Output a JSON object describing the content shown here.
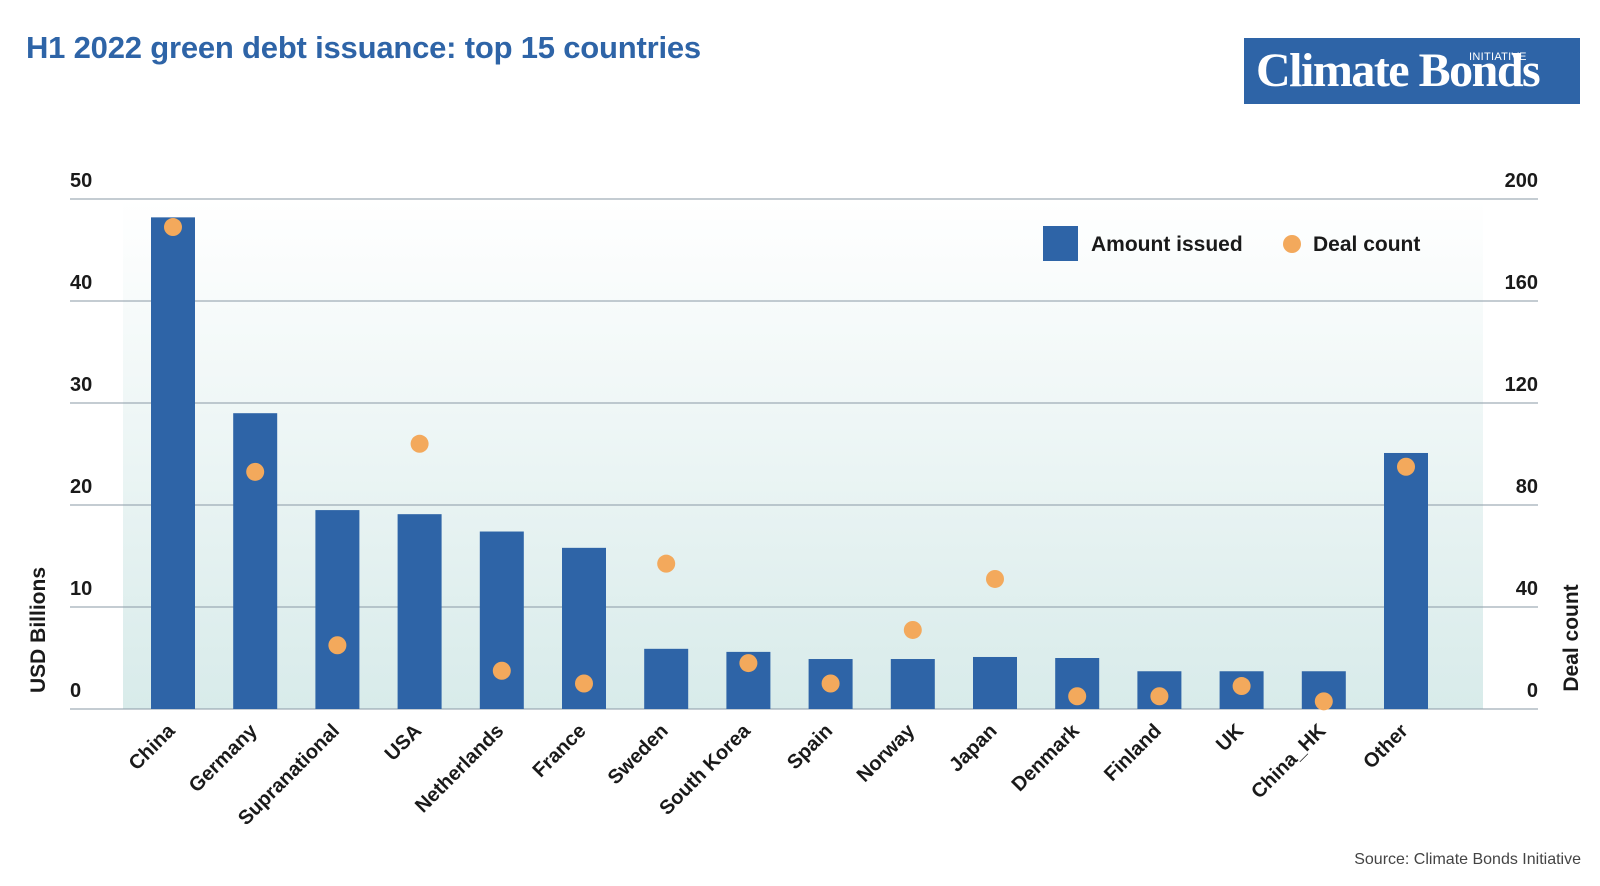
{
  "title": "H1 2022 green debt issuance: top 15 countries",
  "logo": {
    "main": "Climate Bonds",
    "superscript": "INITIATIVE"
  },
  "source": "Source: Climate Bonds Initiative",
  "colors": {
    "bar": "#2e64a7",
    "dot": "#f3a95c",
    "title": "#2e64a7",
    "gridline": "#8a9aa6"
  },
  "chart_data": {
    "type": "bar",
    "categories": [
      "China",
      "Germany",
      "Supranational",
      "USA",
      "Netherlands",
      "France",
      "Sweden",
      "South Korea",
      "Spain",
      "Norway",
      "Japan",
      "Denmark",
      "Finland",
      "UK",
      "China_HK",
      "Other"
    ],
    "series": [
      {
        "name": "Amount issued",
        "axis": "left",
        "type": "bar",
        "values": [
          48.2,
          29.0,
          19.5,
          19.1,
          17.4,
          15.8,
          5.9,
          5.6,
          4.9,
          4.9,
          5.1,
          5.0,
          3.7,
          3.7,
          3.7,
          25.1
        ]
      },
      {
        "name": "Deal count",
        "axis": "right",
        "type": "scatter",
        "values": [
          189,
          93,
          25,
          104,
          15,
          10,
          57,
          18,
          10,
          31,
          51,
          5,
          5,
          9,
          3,
          95
        ]
      }
    ],
    "ylabel": "USD Billions",
    "y2label": "Deal count",
    "ylim": [
      0,
      50
    ],
    "y2lim": [
      0,
      200
    ],
    "yticks": [
      "0",
      "10",
      "20",
      "30",
      "40",
      "50"
    ],
    "y2ticks": [
      "0",
      "40",
      "80",
      "120",
      "160",
      "200"
    ],
    "grid": true,
    "legend_position": "top-right"
  }
}
